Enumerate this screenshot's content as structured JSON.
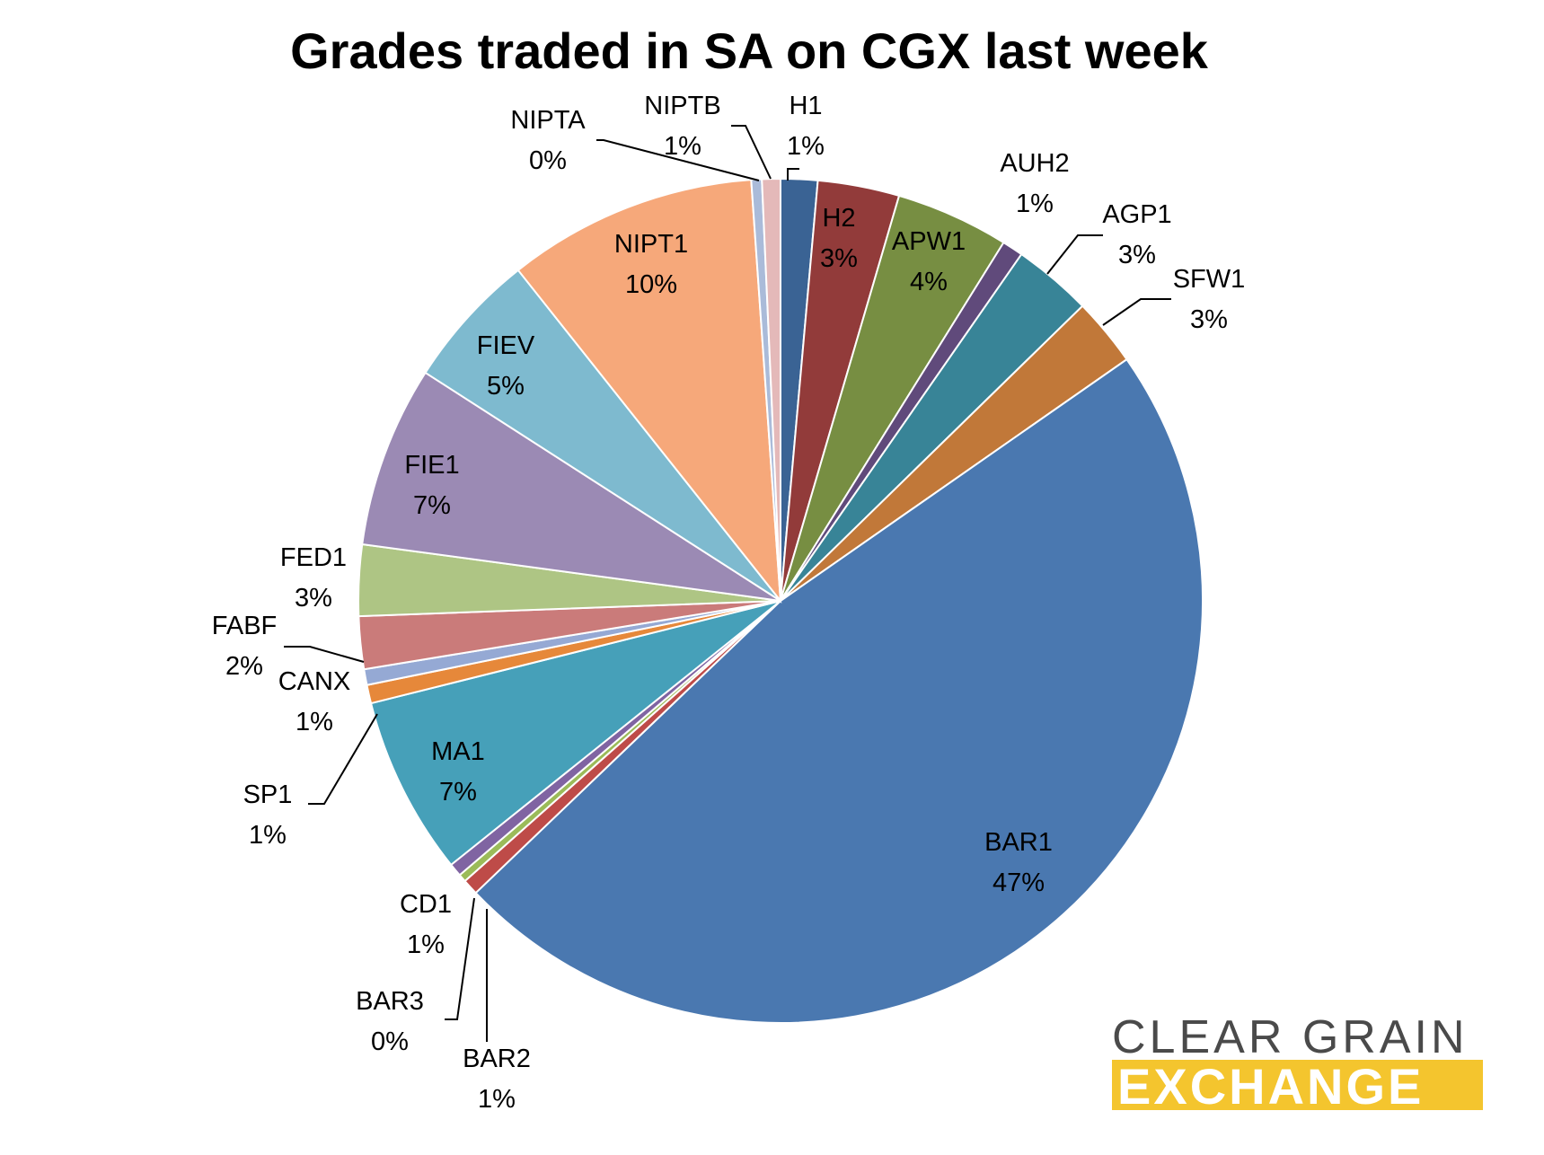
{
  "chart_data": {
    "type": "pie",
    "title": "Grades traded in SA on CGX last week",
    "start_angle_deg": 0,
    "direction": "clockwise",
    "slices": [
      {
        "label": "H1",
        "pct_label": "1%",
        "value": 1.4,
        "color": "#3a6394"
      },
      {
        "label": "H2",
        "pct_label": "3%",
        "value": 3.1,
        "color": "#923b3a"
      },
      {
        "label": "APW1",
        "pct_label": "4%",
        "value": 4.3,
        "color": "#778e42"
      },
      {
        "label": "AUH2",
        "pct_label": "1%",
        "value": 0.8,
        "color": "#604a7b"
      },
      {
        "label": "AGP1",
        "pct_label": "3%",
        "value": 3.0,
        "color": "#388497"
      },
      {
        "label": "SFW1",
        "pct_label": "3%",
        "value": 2.6,
        "color": "#c17839"
      },
      {
        "label": "BAR1",
        "pct_label": "47%",
        "value": 47.2,
        "color": "#4a78b0"
      },
      {
        "label": "BAR2",
        "pct_label": "1%",
        "value": 0.6,
        "color": "#be4b48"
      },
      {
        "label": "BAR3",
        "pct_label": "0%",
        "value": 0.3,
        "color": "#9bbb59"
      },
      {
        "label": "CD1",
        "pct_label": "1%",
        "value": 0.5,
        "color": "#8064a2"
      },
      {
        "label": "MA1",
        "pct_label": "7%",
        "value": 6.8,
        "color": "#46a0b9"
      },
      {
        "label": "SP1",
        "pct_label": "1%",
        "value": 0.7,
        "color": "#e6883a"
      },
      {
        "label": "CANX",
        "pct_label": "1%",
        "value": 0.6,
        "color": "#95a9d4"
      },
      {
        "label": "FABF",
        "pct_label": "2%",
        "value": 2.0,
        "color": "#ca7b7a"
      },
      {
        "label": "FED1",
        "pct_label": "3%",
        "value": 2.7,
        "color": "#aec584"
      },
      {
        "label": "FIE1",
        "pct_label": "7%",
        "value": 6.9,
        "color": "#9b8ab4"
      },
      {
        "label": "FIEV",
        "pct_label": "5%",
        "value": 5.2,
        "color": "#7ebacf"
      },
      {
        "label": "NIPT1",
        "pct_label": "10%",
        "value": 9.5,
        "color": "#f6a87a"
      },
      {
        "label": "NIPTA",
        "pct_label": "0%",
        "value": 0.4,
        "color": "#aabbd9"
      },
      {
        "label": "NIPTB",
        "pct_label": "1%",
        "value": 0.7,
        "color": "#e4b9b9"
      }
    ],
    "legend": "none",
    "data_labels": "name and percent"
  },
  "logo": {
    "line1": "CLEAR GRAIN",
    "line2": "EXCHANGE",
    "accent_color": "#f4c52e",
    "text_color": "#4a4a4a"
  }
}
